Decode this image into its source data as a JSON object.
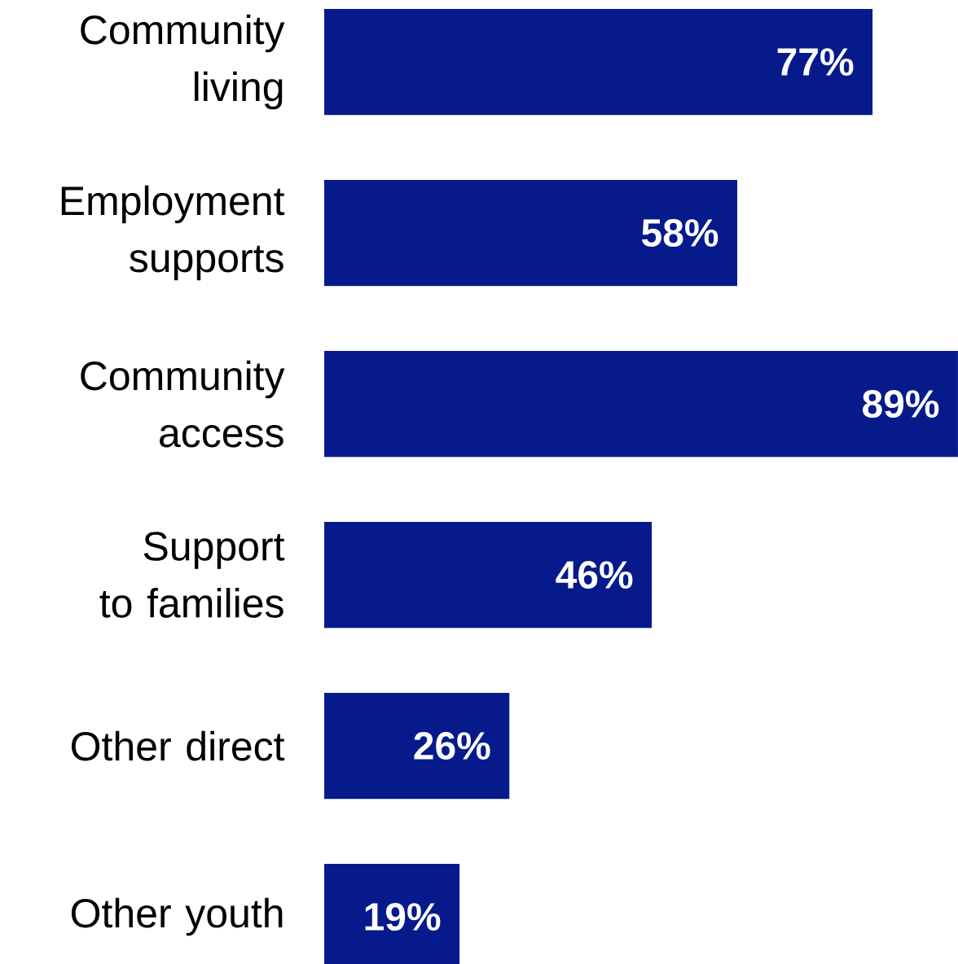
{
  "chart_data": {
    "type": "bar",
    "orientation": "horizontal",
    "categories": [
      "Community living",
      "Employment supports",
      "Community access",
      "Support to families",
      "Other direct",
      "Other youth"
    ],
    "values": [
      77,
      58,
      89,
      46,
      26,
      19
    ],
    "value_labels": [
      "77%",
      "58%",
      "89%",
      "46%",
      "26%",
      "19%"
    ],
    "color": "#061a8c",
    "xlim": [
      0,
      89
    ],
    "tick_labels": "y"
  }
}
